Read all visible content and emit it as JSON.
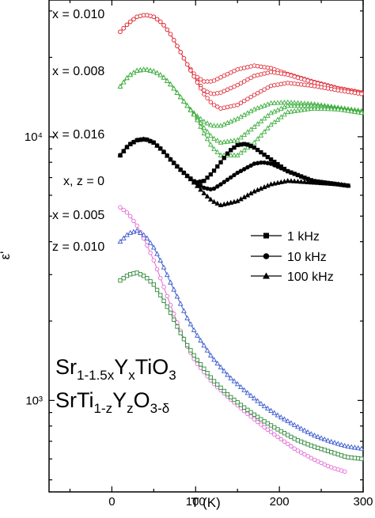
{
  "chart_data": {
    "type": "scatter",
    "title": "",
    "xlabel": "T (K)",
    "ylabel": "ε'",
    "xlim": [
      -75,
      300
    ],
    "ylim": [
      450,
      33000
    ],
    "y_scale": "log",
    "x_ticks": [
      0,
      100,
      200,
      300
    ],
    "x_tick_labels": [
      "0",
      "100",
      "200",
      "300"
    ],
    "y_ticks": [
      1000,
      10000
    ],
    "y_tick_labels": [
      "10³",
      "10⁴"
    ],
    "legend": {
      "position": "right-middle",
      "entries": [
        {
          "label": "1 kHz",
          "marker": "square"
        },
        {
          "label": "10 kHz",
          "marker": "circle"
        },
        {
          "label": "100 kHz",
          "marker": "triangle"
        }
      ]
    },
    "annotations": {
      "label_010": "x = 0.010",
      "label_008": "x = 0.008",
      "label_016": "x = 0.016",
      "label_0": "x, z = 0",
      "label_005": "x = 0.005",
      "label_z010": "z = 0.010"
    },
    "formula1": {
      "base": "Sr",
      "sub1": "1-1.5x",
      "mid": "Y",
      "sub2": "x",
      "tail": "TiO",
      "sub3": "3"
    },
    "formula2": {
      "base": "SrTi",
      "sub1": "1-z",
      "mid": "Y",
      "sub2": "z",
      "tail": "O",
      "sub3": "3-δ"
    },
    "series": [
      {
        "color": "#e0303a",
        "marker": "circle-open",
        "freq": "1 kHz",
        "points": [
          [
            10,
            25000
          ],
          [
            20,
            27000
          ],
          [
            30,
            28500
          ],
          [
            40,
            29000
          ],
          [
            50,
            28500
          ],
          [
            60,
            27000
          ],
          [
            70,
            24500
          ],
          [
            80,
            21500
          ],
          [
            90,
            18800
          ],
          [
            100,
            17000
          ],
          [
            110,
            16200
          ],
          [
            120,
            16200
          ],
          [
            130,
            16800
          ],
          [
            150,
            18000
          ],
          [
            170,
            18600
          ],
          [
            190,
            18200
          ],
          [
            210,
            17300
          ],
          [
            240,
            16200
          ],
          [
            270,
            15300
          ],
          [
            300,
            14700
          ]
        ]
      },
      {
        "color": "#e0303a",
        "marker": "circle-open",
        "freq": "10 kHz",
        "points": [
          [
            10,
            25000
          ],
          [
            20,
            27000
          ],
          [
            30,
            28500
          ],
          [
            40,
            29000
          ],
          [
            50,
            28500
          ],
          [
            60,
            27000
          ],
          [
            70,
            24500
          ],
          [
            80,
            21500
          ],
          [
            90,
            18800
          ],
          [
            100,
            16500
          ],
          [
            110,
            15000
          ],
          [
            120,
            14500
          ],
          [
            130,
            14700
          ],
          [
            150,
            15700
          ],
          [
            170,
            17000
          ],
          [
            190,
            17600
          ],
          [
            210,
            17200
          ],
          [
            240,
            16100
          ],
          [
            270,
            15200
          ],
          [
            300,
            14600
          ]
        ]
      },
      {
        "color": "#e0303a",
        "marker": "circle-open",
        "freq": "100 kHz",
        "points": [
          [
            10,
            25000
          ],
          [
            20,
            27000
          ],
          [
            30,
            28500
          ],
          [
            40,
            29000
          ],
          [
            50,
            28500
          ],
          [
            60,
            27000
          ],
          [
            70,
            24500
          ],
          [
            80,
            21500
          ],
          [
            90,
            18800
          ],
          [
            100,
            16500
          ],
          [
            110,
            14500
          ],
          [
            120,
            13300
          ],
          [
            130,
            12800
          ],
          [
            150,
            13200
          ],
          [
            170,
            14400
          ],
          [
            190,
            15600
          ],
          [
            210,
            16000
          ],
          [
            240,
            15600
          ],
          [
            270,
            15000
          ],
          [
            300,
            14500
          ]
        ]
      },
      {
        "color": "#3fae3f",
        "marker": "triangle-open",
        "freq": "1 kHz",
        "points": [
          [
            10,
            15500
          ],
          [
            20,
            17000
          ],
          [
            30,
            17800
          ],
          [
            40,
            18000
          ],
          [
            50,
            17700
          ],
          [
            60,
            17000
          ],
          [
            70,
            15800
          ],
          [
            80,
            14400
          ],
          [
            90,
            13100
          ],
          [
            100,
            12100
          ],
          [
            110,
            11400
          ],
          [
            120,
            11000
          ],
          [
            130,
            11000
          ],
          [
            150,
            11700
          ],
          [
            170,
            12700
          ],
          [
            190,
            13400
          ],
          [
            210,
            13500
          ],
          [
            240,
            13300
          ],
          [
            270,
            12900
          ],
          [
            300,
            12500
          ]
        ]
      },
      {
        "color": "#3fae3f",
        "marker": "triangle-open",
        "freq": "10 kHz",
        "points": [
          [
            10,
            15500
          ],
          [
            20,
            17000
          ],
          [
            30,
            17800
          ],
          [
            40,
            18000
          ],
          [
            50,
            17700
          ],
          [
            60,
            17000
          ],
          [
            70,
            15800
          ],
          [
            80,
            14400
          ],
          [
            90,
            13100
          ],
          [
            100,
            12000
          ],
          [
            110,
            10800
          ],
          [
            120,
            9900
          ],
          [
            130,
            9500
          ],
          [
            150,
            9700
          ],
          [
            170,
            10900
          ],
          [
            190,
            12300
          ],
          [
            210,
            13100
          ],
          [
            240,
            13100
          ],
          [
            270,
            12800
          ],
          [
            300,
            12400
          ]
        ]
      },
      {
        "color": "#3fae3f",
        "marker": "triangle-open",
        "freq": "100 kHz",
        "points": [
          [
            10,
            15500
          ],
          [
            20,
            17000
          ],
          [
            30,
            17800
          ],
          [
            40,
            18000
          ],
          [
            50,
            17700
          ],
          [
            60,
            17000
          ],
          [
            70,
            15800
          ],
          [
            80,
            14400
          ],
          [
            90,
            13100
          ],
          [
            100,
            11900
          ],
          [
            110,
            10300
          ],
          [
            120,
            9100
          ],
          [
            130,
            8500
          ],
          [
            150,
            8500
          ],
          [
            170,
            9500
          ],
          [
            190,
            11100
          ],
          [
            210,
            12400
          ],
          [
            240,
            12800
          ],
          [
            270,
            12700
          ],
          [
            300,
            12300
          ]
        ]
      },
      {
        "color": "#000000",
        "marker": "square",
        "freq": "1 kHz",
        "points": [
          [
            10,
            8500
          ],
          [
            20,
            9300
          ],
          [
            30,
            9700
          ],
          [
            40,
            9800
          ],
          [
            50,
            9500
          ],
          [
            60,
            8900
          ],
          [
            70,
            8200
          ],
          [
            80,
            7600
          ],
          [
            90,
            7100
          ],
          [
            100,
            6700
          ],
          [
            110,
            6800
          ],
          [
            120,
            7300
          ],
          [
            130,
            8000
          ],
          [
            140,
            8800
          ],
          [
            150,
            9300
          ],
          [
            160,
            9400
          ],
          [
            170,
            9100
          ],
          [
            190,
            8200
          ],
          [
            210,
            7400
          ],
          [
            240,
            6800
          ],
          [
            270,
            6600
          ],
          [
            285,
            6500
          ]
        ]
      },
      {
        "color": "#000000",
        "marker": "circle",
        "freq": "10 kHz",
        "points": [
          [
            10,
            8500
          ],
          [
            20,
            9300
          ],
          [
            30,
            9700
          ],
          [
            40,
            9800
          ],
          [
            50,
            9500
          ],
          [
            60,
            8900
          ],
          [
            70,
            8200
          ],
          [
            80,
            7600
          ],
          [
            90,
            7100
          ],
          [
            100,
            6700
          ],
          [
            110,
            6400
          ],
          [
            120,
            6300
          ],
          [
            130,
            6600
          ],
          [
            150,
            7300
          ],
          [
            170,
            7900
          ],
          [
            180,
            8000
          ],
          [
            190,
            7900
          ],
          [
            210,
            7400
          ],
          [
            240,
            6800
          ],
          [
            270,
            6600
          ],
          [
            285,
            6500
          ]
        ]
      },
      {
        "color": "#000000",
        "marker": "triangle",
        "freq": "100 kHz",
        "points": [
          [
            10,
            8500
          ],
          [
            20,
            9300
          ],
          [
            30,
            9700
          ],
          [
            40,
            9800
          ],
          [
            50,
            9500
          ],
          [
            60,
            8900
          ],
          [
            70,
            8200
          ],
          [
            80,
            7600
          ],
          [
            90,
            7100
          ],
          [
            100,
            6600
          ],
          [
            110,
            6100
          ],
          [
            120,
            5700
          ],
          [
            130,
            5500
          ],
          [
            150,
            5700
          ],
          [
            170,
            6200
          ],
          [
            190,
            6600
          ],
          [
            210,
            6800
          ],
          [
            240,
            6700
          ],
          [
            270,
            6600
          ],
          [
            285,
            6500
          ]
        ]
      },
      {
        "color": "#e46ad4",
        "marker": "circle-open",
        "freq": "",
        "points": [
          [
            10,
            5400
          ],
          [
            20,
            5100
          ],
          [
            30,
            4600
          ],
          [
            40,
            4000
          ],
          [
            50,
            3400
          ],
          [
            60,
            2800
          ],
          [
            70,
            2300
          ],
          [
            80,
            1900
          ],
          [
            90,
            1600
          ],
          [
            100,
            1400
          ],
          [
            120,
            1170
          ],
          [
            140,
            1020
          ],
          [
            160,
            900
          ],
          [
            180,
            800
          ],
          [
            200,
            720
          ],
          [
            220,
            650
          ],
          [
            240,
            600
          ],
          [
            260,
            560
          ],
          [
            280,
            535
          ]
        ]
      },
      {
        "color": "#3b5bd0",
        "marker": "triangle-open",
        "freq": "",
        "points": [
          [
            10,
            4000
          ],
          [
            20,
            4300
          ],
          [
            30,
            4400
          ],
          [
            40,
            4200
          ],
          [
            50,
            3800
          ],
          [
            60,
            3300
          ],
          [
            70,
            2800
          ],
          [
            80,
            2400
          ],
          [
            90,
            2050
          ],
          [
            100,
            1800
          ],
          [
            120,
            1450
          ],
          [
            140,
            1230
          ],
          [
            160,
            1080
          ],
          [
            180,
            960
          ],
          [
            200,
            870
          ],
          [
            220,
            800
          ],
          [
            240,
            740
          ],
          [
            260,
            700
          ],
          [
            280,
            670
          ],
          [
            300,
            655
          ]
        ]
      },
      {
        "color": "#2e8a3a",
        "marker": "square-open",
        "freq": "",
        "points": [
          [
            10,
            2850
          ],
          [
            20,
            3000
          ],
          [
            30,
            3050
          ],
          [
            40,
            2950
          ],
          [
            50,
            2750
          ],
          [
            60,
            2450
          ],
          [
            70,
            2150
          ],
          [
            80,
            1850
          ],
          [
            90,
            1620
          ],
          [
            100,
            1450
          ],
          [
            120,
            1200
          ],
          [
            140,
            1040
          ],
          [
            160,
            930
          ],
          [
            180,
            840
          ],
          [
            200,
            770
          ],
          [
            220,
            710
          ],
          [
            240,
            670
          ],
          [
            260,
            640
          ],
          [
            280,
            610
          ],
          [
            300,
            600
          ]
        ]
      }
    ]
  }
}
